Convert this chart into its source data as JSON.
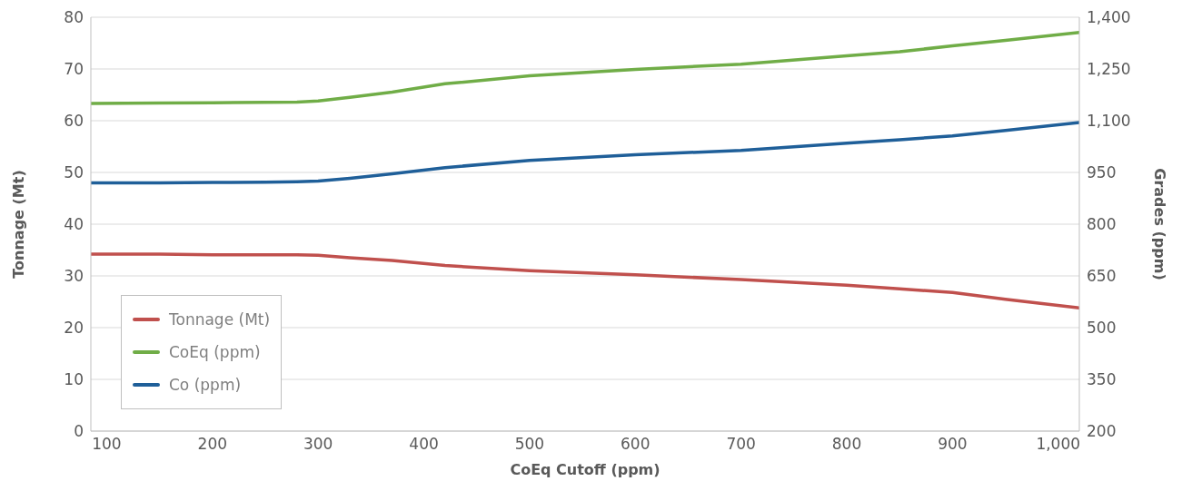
{
  "chart_data": {
    "type": "line",
    "xlabel": "CoEq Cutoff (ppm)",
    "ylabel": "Tonnage (Mt)",
    "y2label": "Grades (ppm)",
    "x": [
      85,
      150,
      200,
      250,
      280,
      300,
      330,
      370,
      420,
      500,
      600,
      700,
      800,
      850,
      900,
      950,
      1020
    ],
    "series": [
      {
        "name": "Tonnage (Mt)",
        "color": "#c0504d",
        "values": [
          34.2,
          34.2,
          34.1,
          34.1,
          34.1,
          34.0,
          33.5,
          33.0,
          32.0,
          31.0,
          30.2,
          29.3,
          28.2,
          27.5,
          26.8,
          25.5,
          23.8
        ]
      },
      {
        "name": "CoEq (ppm)",
        "color": "#70ad47",
        "axis": "y2",
        "values": [
          1150,
          1151,
          1152,
          1153,
          1154,
          1157,
          1168,
          1183,
          1207,
          1230,
          1249,
          1264,
          1288,
          1300,
          1317,
          1333,
          1356
        ]
      },
      {
        "name": "Co (ppm)",
        "color": "#1f5f99",
        "axis": "y2",
        "values": [
          920,
          920,
          921,
          922,
          923,
          925,
          933,
          946,
          964,
          985,
          1001,
          1014,
          1035,
          1045,
          1056,
          1072,
          1095
        ]
      }
    ],
    "xlim": [
      85,
      1020
    ],
    "xticks": [
      100,
      200,
      300,
      400,
      500,
      600,
      700,
      800,
      900,
      {
        "value": 1000,
        "label": "1,000"
      }
    ],
    "ylim": [
      0,
      80
    ],
    "yticks": [
      0,
      10,
      20,
      30,
      40,
      50,
      60,
      70,
      80
    ],
    "y2lim": [
      200,
      1400
    ],
    "y2ticks": [
      200,
      350,
      500,
      650,
      800,
      950,
      {
        "value": 1100,
        "label": "1,100"
      },
      {
        "value": 1250,
        "label": "1,250"
      },
      {
        "value": 1400,
        "label": "1,400"
      }
    ],
    "grid": "y",
    "legend": "bottom left",
    "marker": "none",
    "line_style": "solid"
  }
}
